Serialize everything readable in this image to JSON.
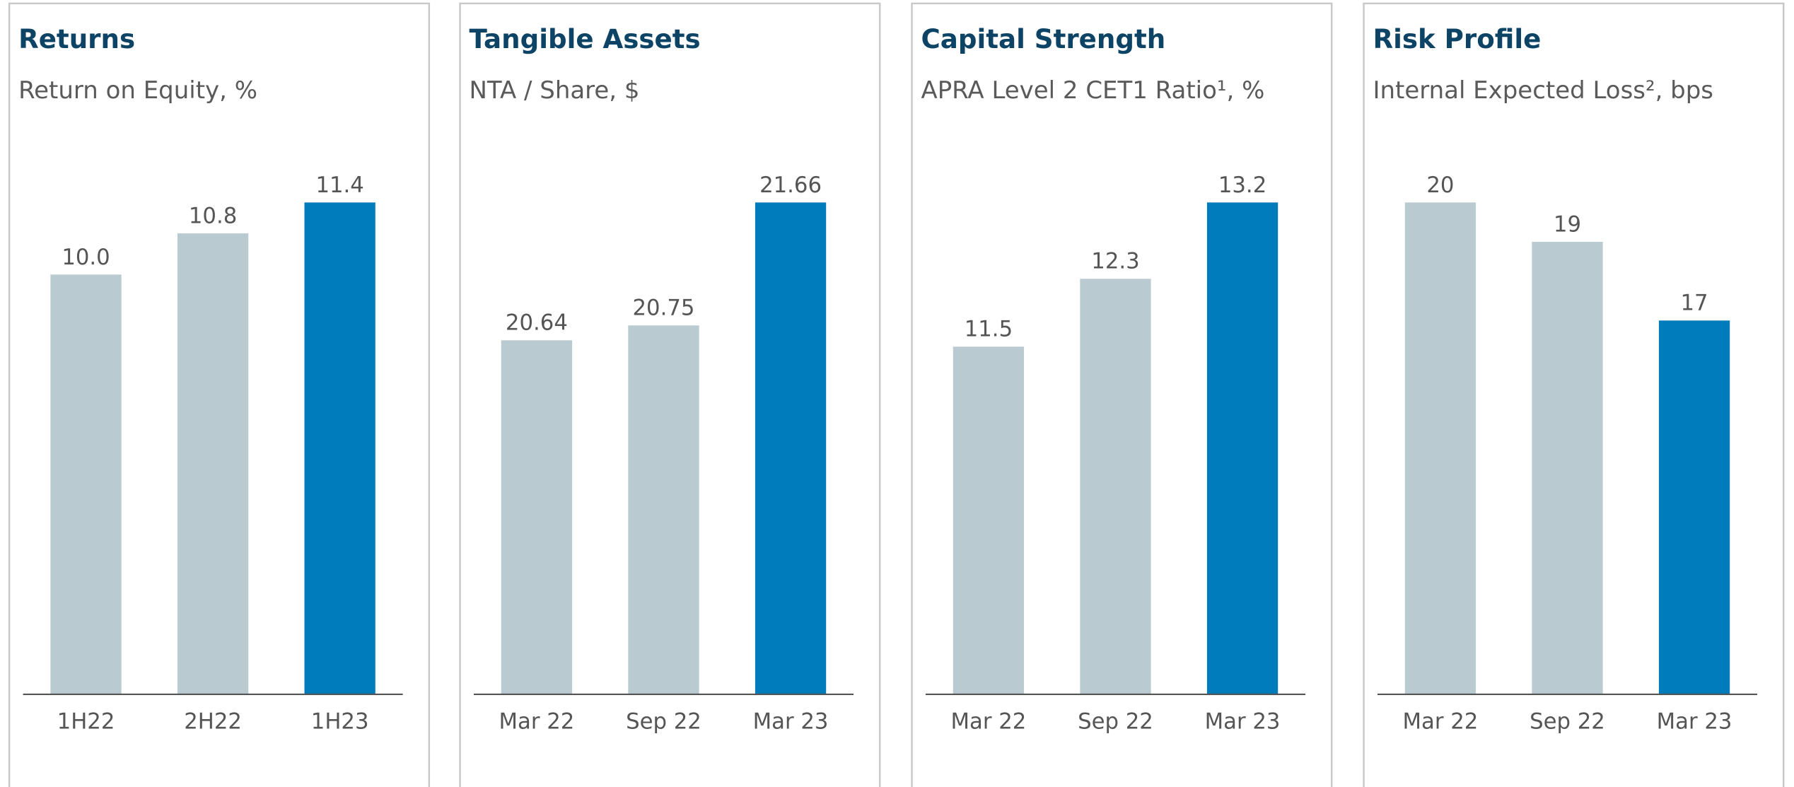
{
  "chart_data": [
    {
      "type": "bar",
      "title": "Returns",
      "subtitle": "Return on Equity, %",
      "categories": [
        "1H22",
        "2H22",
        "1H23"
      ],
      "values": [
        10.0,
        10.8,
        11.4
      ],
      "value_labels": [
        "10.0",
        "10.8",
        "11.4"
      ],
      "colors": [
        "#b9cad1",
        "#b9cad1",
        "#007bbb"
      ],
      "ylim": [
        1.85,
        11.4
      ]
    },
    {
      "type": "bar",
      "title": "Tangible Assets",
      "subtitle": "NTA / Share, $",
      "categories": [
        "Mar 22",
        "Sep 22",
        "Mar 23"
      ],
      "values": [
        20.64,
        20.75,
        21.66
      ],
      "colors": [
        "#b9cad1",
        "#b9cad1",
        "#007bbb"
      ],
      "ylim": [
        18.02,
        21.66
      ]
    },
    {
      "type": "bar",
      "title": "Capital Strength",
      "subtitle": "APRA Level 2 CET1 Ratio¹, %",
      "categories": [
        "Mar 22",
        "Sep 22",
        "Mar 23"
      ],
      "values": [
        11.5,
        12.3,
        13.2
      ],
      "colors": [
        "#b9cad1",
        "#b9cad1",
        "#007bbb"
      ],
      "ylim": [
        7.4,
        13.2
      ]
    },
    {
      "type": "bar",
      "title": "Risk Profile",
      "subtitle": "Internal Expected Loss², bps",
      "categories": [
        "Mar 22",
        "Sep 22",
        "Mar 23"
      ],
      "values": [
        20,
        19,
        17
      ],
      "colors": [
        "#b9cad1",
        "#b9cad1",
        "#007bbb"
      ],
      "ylim": [
        7.5,
        20
      ]
    }
  ]
}
